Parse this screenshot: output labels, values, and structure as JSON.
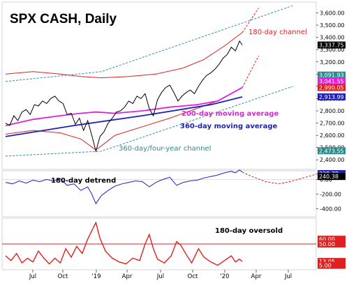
{
  "chart_data": [
    {
      "type": "line",
      "title": "SPX CASH, Daily",
      "panel": "price",
      "y_ticks": [
        2400,
        2500,
        2600,
        2700,
        2800,
        2900,
        3000,
        3100,
        3200,
        3300,
        3400,
        3500,
        3600
      ],
      "y_tick_labels": [
        "2,400.00",
        "2,500.00",
        "2,600.00",
        "2,700.00",
        "2,800.00",
        "2,900.00",
        "3,000.00",
        "3,100.00",
        "3,200.00",
        "3,300.00",
        "3,400.00",
        "3,500.00",
        "3,600.00"
      ],
      "ylim": [
        2350,
        3660
      ],
      "x_ticks": [
        "Jul",
        "Oct",
        "'19",
        "Apr",
        "Jul",
        "Oct",
        "'20",
        "Apr",
        "Jul"
      ],
      "price_points": [
        [
          0,
          2700
        ],
        [
          6,
          2680
        ],
        [
          12,
          2760
        ],
        [
          18,
          2720
        ],
        [
          24,
          2790
        ],
        [
          30,
          2810
        ],
        [
          36,
          2770
        ],
        [
          42,
          2850
        ],
        [
          48,
          2840
        ],
        [
          54,
          2880
        ],
        [
          60,
          2860
        ],
        [
          66,
          2900
        ],
        [
          72,
          2920
        ],
        [
          78,
          2880
        ],
        [
          84,
          2860
        ],
        [
          90,
          2770
        ],
        [
          96,
          2780
        ],
        [
          102,
          2690
        ],
        [
          108,
          2740
        ],
        [
          114,
          2640
        ],
        [
          120,
          2720
        ],
        [
          126,
          2600
        ],
        [
          132,
          2470
        ],
        [
          138,
          2590
        ],
        [
          144,
          2630
        ],
        [
          150,
          2700
        ],
        [
          156,
          2740
        ],
        [
          162,
          2790
        ],
        [
          168,
          2800
        ],
        [
          174,
          2830
        ],
        [
          180,
          2880
        ],
        [
          186,
          2860
        ],
        [
          192,
          2920
        ],
        [
          198,
          2900
        ],
        [
          204,
          2940
        ],
        [
          210,
          2820
        ],
        [
          216,
          2760
        ],
        [
          222,
          2890
        ],
        [
          228,
          2950
        ],
        [
          234,
          2990
        ],
        [
          240,
          3010
        ],
        [
          246,
          2950
        ],
        [
          252,
          2880
        ],
        [
          258,
          2920
        ],
        [
          264,
          2950
        ],
        [
          270,
          2970
        ],
        [
          276,
          2940
        ],
        [
          282,
          3000
        ],
        [
          288,
          3050
        ],
        [
          294,
          3090
        ],
        [
          300,
          3110
        ],
        [
          306,
          3140
        ],
        [
          312,
          3180
        ],
        [
          318,
          3230
        ],
        [
          324,
          3260
        ],
        [
          330,
          3320
        ],
        [
          336,
          3290
        ],
        [
          342,
          3370
        ],
        [
          346,
          3337.75
        ]
      ],
      "channel_upper_points": [
        [
          0,
          3100
        ],
        [
          40,
          3120
        ],
        [
          80,
          3100
        ],
        [
          110,
          3080
        ],
        [
          140,
          3070
        ],
        [
          180,
          3080
        ],
        [
          220,
          3100
        ],
        [
          260,
          3150
        ],
        [
          290,
          3220
        ],
        [
          320,
          3330
        ],
        [
          346,
          3440
        ]
      ],
      "channel_upper_projection": [
        [
          346,
          3440
        ],
        [
          370,
          3640
        ]
      ],
      "channel_lower_points": [
        [
          0,
          2610
        ],
        [
          40,
          2640
        ],
        [
          80,
          2620
        ],
        [
          110,
          2570
        ],
        [
          132,
          2480
        ],
        [
          160,
          2600
        ],
        [
          200,
          2670
        ],
        [
          240,
          2740
        ],
        [
          280,
          2820
        ],
        [
          310,
          2880
        ],
        [
          346,
          2990
        ]
      ],
      "channel_lower_projection": [
        [
          346,
          2990
        ],
        [
          370,
          3250
        ]
      ],
      "ma200_points": [
        [
          0,
          2680
        ],
        [
          40,
          2730
        ],
        [
          80,
          2760
        ],
        [
          110,
          2780
        ],
        [
          132,
          2790
        ],
        [
          160,
          2780
        ],
        [
          200,
          2800
        ],
        [
          240,
          2830
        ],
        [
          280,
          2850
        ],
        [
          310,
          2880
        ],
        [
          346,
          2990.05
        ]
      ],
      "ma360_points": [
        [
          0,
          2590
        ],
        [
          100,
          2680
        ],
        [
          200,
          2760
        ],
        [
          300,
          2850
        ],
        [
          346,
          2913.99
        ]
      ],
      "four_year_channel_upper": [
        [
          0,
          3040
        ],
        [
          140,
          3120
        ],
        [
          420,
          3660
        ]
      ],
      "four_year_channel_lower": [
        [
          0,
          2430
        ],
        [
          140,
          2470
        ],
        [
          420,
          3000
        ]
      ],
      "right_tags": [
        {
          "label": "3,337.75",
          "value": 3337.75,
          "color": "#000000"
        },
        {
          "label": "3,091.93",
          "value": 3091.93,
          "color": "#2e8b8b"
        },
        {
          "label": "3,041.55",
          "value": 3041.55,
          "color": "#e020e0"
        },
        {
          "label": "2,990.05",
          "value": 2990.05,
          "color": "#e02020"
        },
        {
          "label": "2,913.99",
          "value": 2913.99,
          "color": "#2020c0"
        },
        {
          "label": "2,473.55",
          "value": 2473.55,
          "color": "#2e8b8b"
        }
      ],
      "annotations": {
        "channel_180": "180-day channel",
        "ma200": "200-day moving average",
        "ma360": "360-day moving average",
        "four_year": "360-day/four-year channel"
      },
      "colors": {
        "price": "#000000",
        "channel_180": "#e02020",
        "ma200": "#e020e0",
        "ma360": "#2020c0",
        "four_year": "#2e8bb0",
        "four_year_label": "#2e8b8b"
      }
    },
    {
      "type": "line",
      "panel": "detrend",
      "label": "180-day detrend",
      "y_ticks": [
        0,
        -200,
        -400
      ],
      "y_tick_labels": [
        "0.00",
        "-200.00",
        "-400.00"
      ],
      "ylim": [
        -480,
        80
      ],
      "detrend_points": [
        [
          0,
          -40
        ],
        [
          10,
          -60
        ],
        [
          20,
          -20
        ],
        [
          30,
          -50
        ],
        [
          40,
          -10
        ],
        [
          50,
          -30
        ],
        [
          60,
          0
        ],
        [
          70,
          -20
        ],
        [
          80,
          10
        ],
        [
          90,
          -80
        ],
        [
          100,
          -60
        ],
        [
          110,
          -150
        ],
        [
          120,
          -100
        ],
        [
          126,
          -200
        ],
        [
          132,
          -330
        ],
        [
          140,
          -220
        ],
        [
          150,
          -150
        ],
        [
          160,
          -90
        ],
        [
          170,
          -60
        ],
        [
          180,
          -40
        ],
        [
          190,
          -20
        ],
        [
          200,
          -30
        ],
        [
          210,
          -100
        ],
        [
          220,
          -40
        ],
        [
          230,
          0
        ],
        [
          240,
          30
        ],
        [
          250,
          -80
        ],
        [
          260,
          -40
        ],
        [
          270,
          -20
        ],
        [
          280,
          -10
        ],
        [
          290,
          20
        ],
        [
          300,
          40
        ],
        [
          310,
          60
        ],
        [
          320,
          90
        ],
        [
          330,
          110
        ],
        [
          336,
          90
        ],
        [
          342,
          130
        ],
        [
          346,
          100
        ]
      ],
      "projection_points": [
        [
          346,
          100
        ],
        [
          360,
          40
        ],
        [
          380,
          -30
        ],
        [
          400,
          -60
        ],
        [
          420,
          -20
        ],
        [
          450,
          60
        ],
        [
          470,
          110
        ],
        [
          480,
          120
        ]
      ],
      "right_tags": [
        {
          "label": "328.78",
          "value": 80,
          "color": "#2020c0"
        },
        {
          "label": "240.38",
          "value": 40,
          "color": "#000000"
        }
      ],
      "colors": {
        "line": "#2020c0",
        "projection": "#e02020"
      }
    },
    {
      "type": "line",
      "panel": "oscillator",
      "label": "180-day oversold",
      "ylim": [
        0,
        100
      ],
      "levels": {
        "overbought": 60,
        "oversold_line": 50
      },
      "oscillator_points": [
        [
          0,
          25
        ],
        [
          8,
          15
        ],
        [
          16,
          30
        ],
        [
          24,
          10
        ],
        [
          32,
          20
        ],
        [
          40,
          12
        ],
        [
          48,
          35
        ],
        [
          56,
          20
        ],
        [
          64,
          8
        ],
        [
          72,
          20
        ],
        [
          80,
          10
        ],
        [
          88,
          40
        ],
        [
          96,
          22
        ],
        [
          104,
          45
        ],
        [
          112,
          30
        ],
        [
          120,
          60
        ],
        [
          126,
          78
        ],
        [
          132,
          95
        ],
        [
          138,
          62
        ],
        [
          146,
          35
        ],
        [
          156,
          20
        ],
        [
          166,
          12
        ],
        [
          176,
          8
        ],
        [
          186,
          20
        ],
        [
          196,
          15
        ],
        [
          204,
          50
        ],
        [
          210,
          70
        ],
        [
          216,
          40
        ],
        [
          222,
          18
        ],
        [
          232,
          10
        ],
        [
          242,
          25
        ],
        [
          250,
          55
        ],
        [
          256,
          48
        ],
        [
          264,
          28
        ],
        [
          272,
          10
        ],
        [
          282,
          40
        ],
        [
          290,
          22
        ],
        [
          300,
          12
        ],
        [
          310,
          5
        ],
        [
          320,
          15
        ],
        [
          330,
          25
        ],
        [
          336,
          12
        ],
        [
          342,
          18
        ],
        [
          346,
          13.05
        ]
      ],
      "right_tags": [
        {
          "label": "60.00",
          "value": 60,
          "color": "#e02020"
        },
        {
          "label": "50.00",
          "value": 50,
          "color": "#e02020"
        },
        {
          "label": "13.05",
          "value": 13.05,
          "color": "#e02020"
        },
        {
          "label": "5.00",
          "value": 5,
          "color": "#e02020"
        }
      ],
      "colors": {
        "line": "#e02020",
        "level": "#e02020"
      }
    }
  ]
}
